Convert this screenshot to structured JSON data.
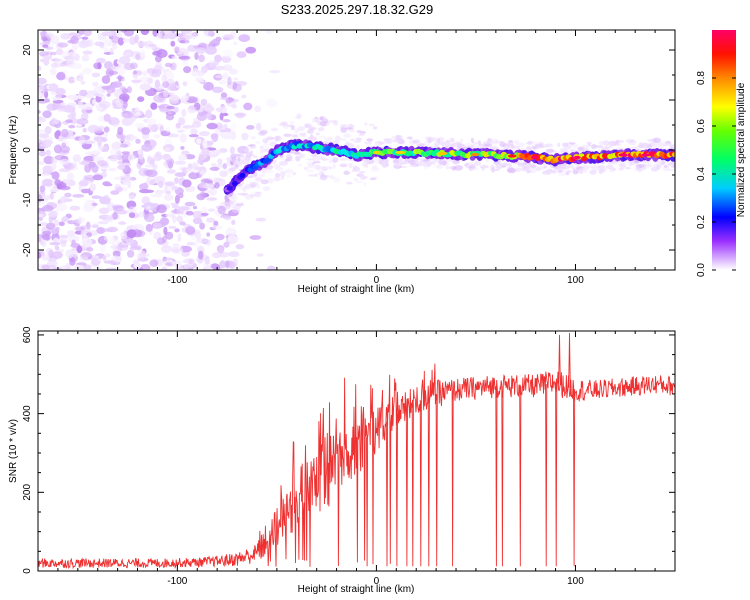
{
  "title": "S233.2025.297.18.32.G29",
  "chart_data": [
    {
      "type": "heatmap",
      "title": "S233.2025.297.18.32.G29",
      "xlabel": "Height of straight line (km)",
      "ylabel": "Frequency (Hz)",
      "xlim": [
        -170,
        150
      ],
      "ylim": [
        -24,
        24
      ],
      "x_ticks": [
        -100,
        0,
        100
      ],
      "y_ticks": [
        -20,
        -10,
        0,
        10,
        20
      ],
      "colorbar": {
        "label": "Normalized spectral amplitude",
        "range": [
          0,
          1
        ],
        "ticks": [
          0,
          0.2,
          0.4,
          0.6,
          0.8
        ],
        "tick_labels": [
          "0.0",
          "0.2",
          "0.4",
          "0.6",
          "0.8"
        ],
        "colormap": [
          "#ffffff",
          "#e6ccff",
          "#8a2be2",
          "#0000ff",
          "#00e5ff",
          "#00ff66",
          "#ccff00",
          "#ffcc00",
          "#ff2200",
          "#ff0066"
        ]
      },
      "ridge": {
        "x": [
          -75,
          -70,
          -65,
          -60,
          -55,
          -50,
          -45,
          -40,
          -30,
          -20,
          -10,
          0,
          20,
          40,
          60,
          80,
          90,
          100,
          110,
          120,
          130,
          140,
          150
        ],
        "y": [
          -8,
          -6,
          -4,
          -3,
          -2,
          0,
          0.5,
          1,
          0.5,
          0,
          -1,
          -0.5,
          -0.5,
          -0.8,
          -1,
          -1.5,
          -2,
          -1.5,
          -1.5,
          -1,
          -1,
          -1,
          -1
        ],
        "amplitude": [
          0.25,
          0.3,
          0.35,
          0.4,
          0.45,
          0.45,
          0.45,
          0.45,
          0.5,
          0.5,
          0.55,
          0.6,
          0.6,
          0.65,
          0.7,
          0.85,
          0.95,
          0.9,
          0.85,
          0.9,
          0.95,
          0.95,
          0.9
        ]
      },
      "noise_region_x": [
        -170,
        -60
      ]
    },
    {
      "type": "line",
      "xlabel": "Height of straight line (km)",
      "ylabel": "SNR (10 * v/v)",
      "xlim": [
        -170,
        150
      ],
      "ylim": [
        0,
        610
      ],
      "x_ticks": [
        -100,
        0,
        100
      ],
      "y_ticks": [
        0,
        200,
        400,
        600
      ],
      "series": [
        {
          "name": "SNR",
          "color": "#ee3030",
          "x": [
            -170,
            -150,
            -130,
            -110,
            -90,
            -80,
            -70,
            -60,
            -55,
            -50,
            -45,
            -40,
            -30,
            -20,
            -10,
            0,
            10,
            20,
            30,
            40,
            50,
            60,
            70,
            80,
            90,
            100,
            110,
            120,
            130,
            140,
            150
          ],
          "y": [
            20,
            20,
            20,
            20,
            22,
            25,
            30,
            45,
            80,
            120,
            150,
            180,
            220,
            270,
            320,
            360,
            400,
            430,
            450,
            460,
            465,
            470,
            470,
            470,
            480,
            460,
            460,
            465,
            470,
            475,
            470
          ],
          "spread": [
            12,
            12,
            12,
            12,
            12,
            14,
            18,
            25,
            45,
            60,
            70,
            80,
            90,
            90,
            80,
            60,
            45,
            40,
            35,
            30,
            30,
            30,
            30,
            30,
            35,
            30,
            25,
            25,
            25,
            25,
            25
          ],
          "dropouts_x": [
            -5,
            5,
            10,
            15,
            18,
            22,
            26,
            30,
            38,
            60,
            63,
            72,
            85,
            90,
            99
          ],
          "peaks": [
            {
              "x": 92,
              "y": 600
            },
            {
              "x": 97,
              "y": 605
            }
          ]
        }
      ]
    }
  ]
}
